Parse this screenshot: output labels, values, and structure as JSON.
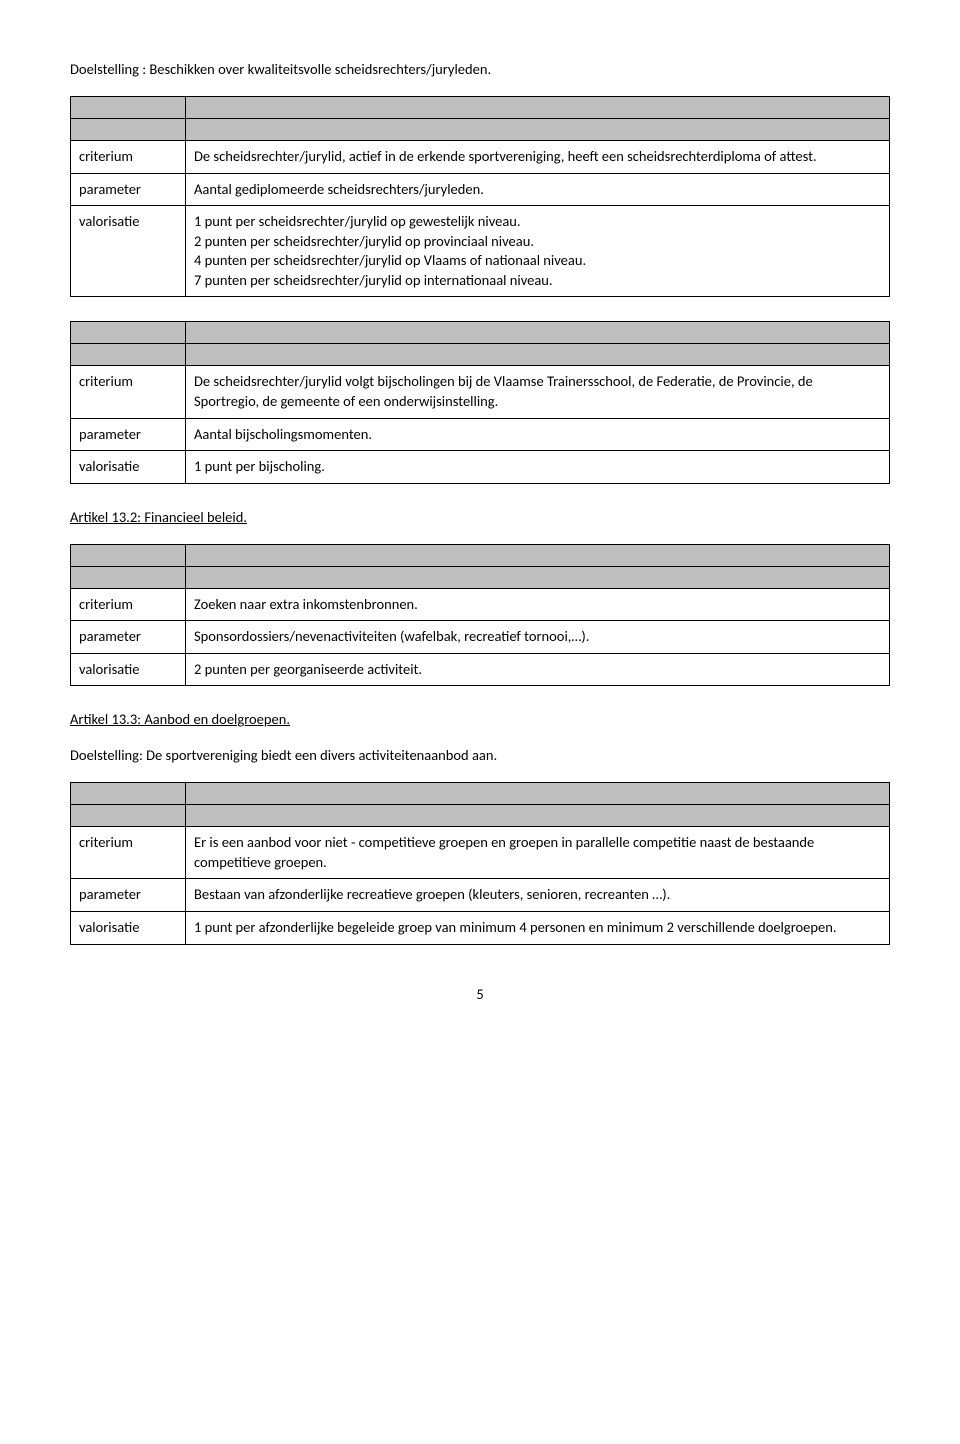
{
  "doelstelling1": "Doelstelling : Beschikken over kwaliteitsvolle scheidsrechters/juryleden.",
  "table1": {
    "criterium_label": "criterium",
    "criterium_text": "De scheidsrechter/jurylid, actief in de erkende sportvereniging, heeft een scheidsrechterdiploma of attest.",
    "parameter_label": "parameter",
    "parameter_text": "Aantal gediplomeerde scheidsrechters/juryleden.",
    "valorisatie_label": "valorisatie",
    "valorisatie_line1": "1 punt per scheidsrechter/jurylid op gewestelijk niveau.",
    "valorisatie_line2": "2 punten per scheidsrechter/jurylid op provinciaal niveau.",
    "valorisatie_line3": "4 punten per scheidsrechter/jurylid op Vlaams of nationaal niveau.",
    "valorisatie_line4": "7 punten per scheidsrechter/jurylid op internationaal niveau."
  },
  "table2": {
    "criterium_label": "criterium",
    "criterium_text": "De scheidsrechter/jurylid volgt bijscholingen bij de Vlaamse Trainersschool, de Federatie, de Provincie, de Sportregio, de gemeente of een onderwijsinstelling.",
    "parameter_label": "parameter",
    "parameter_text": "Aantal bijscholingsmomenten.",
    "valorisatie_label": "valorisatie",
    "valorisatie_text": "1 punt per bijscholing."
  },
  "artikel132": "Artikel 13.2: Financieel beleid.",
  "table3": {
    "criterium_label": "criterium",
    "criterium_text": "Zoeken naar extra inkomstenbronnen.",
    "parameter_label": "parameter",
    "parameter_text": "Sponsordossiers/nevenactiviteiten (wafelbak, recreatief tornooi,…).",
    "valorisatie_label": "valorisatie",
    "valorisatie_text": "2 punten per georganiseerde activiteit."
  },
  "artikel133": "Artikel 13.3: Aanbod en doelgroepen.",
  "doelstelling2": "Doelstelling: De sportvereniging biedt een divers activiteitenaanbod aan.",
  "table4": {
    "criterium_label": "criterium",
    "criterium_text": "Er is een aanbod voor niet - competitieve groepen en groepen in parallelle competitie naast de bestaande competitieve groepen.",
    "parameter_label": "parameter",
    "parameter_text": "Bestaan van afzonderlijke recreatieve groepen (kleuters, senioren, recreanten …).",
    "valorisatie_label": "valorisatie",
    "valorisatie_text": "1 punt per afzonderlijke begeleide groep van minimum 4 personen en minimum 2 verschillende doelgroepen."
  },
  "page_number": "5"
}
